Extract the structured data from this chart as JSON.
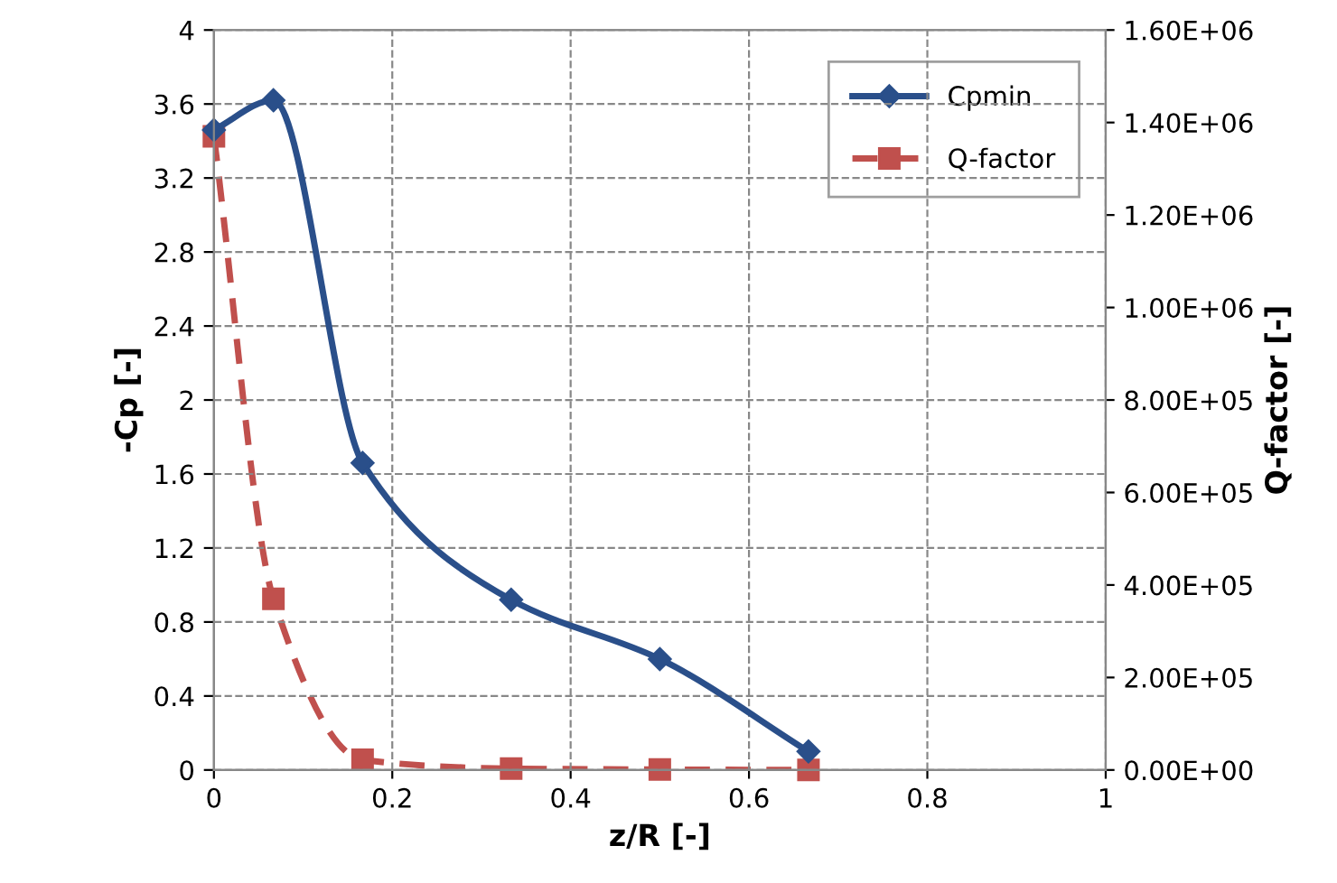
{
  "chart_data": {
    "type": "line",
    "xlabel": "z/R [-]",
    "ylabel": "-Cp [-]",
    "y2label": "Q-factor [-]",
    "xlim": [
      0,
      1
    ],
    "xticks": [
      0,
      0.2,
      0.4,
      0.6,
      0.8,
      1
    ],
    "ylim": [
      0,
      4
    ],
    "yticks": [
      0,
      0.4,
      0.8,
      1.2,
      1.6,
      2,
      2.4,
      2.8,
      3.2,
      3.6,
      4
    ],
    "y2lim": [
      0,
      1600000
    ],
    "y2ticks": [
      {
        "value": 0,
        "label": "0.00E+00"
      },
      {
        "value": 200000,
        "label": "2.00E+05"
      },
      {
        "value": 400000,
        "label": "4.00E+05"
      },
      {
        "value": 600000,
        "label": "6.00E+05"
      },
      {
        "value": 800000,
        "label": "8.00E+05"
      },
      {
        "value": 1000000,
        "label": "1.00E+06"
      },
      {
        "value": 1200000,
        "label": "1.20E+06"
      },
      {
        "value": 1400000,
        "label": "1.40E+06"
      },
      {
        "value": 1600000,
        "label": "1.60E+06"
      }
    ],
    "grid": true,
    "legend": "top right",
    "series": [
      {
        "name": "Cpmin",
        "color": "#2a4f8a",
        "marker": "diamond",
        "line_style": "solid",
        "x": [
          0,
          0.0667,
          0.1667,
          0.3333,
          0.5,
          0.6667
        ],
        "values": [
          3.46,
          3.62,
          1.66,
          0.92,
          0.6,
          0.1
        ]
      },
      {
        "name": "Q-factor",
        "color": "#c0504d",
        "marker": "square",
        "line_style": "dashed",
        "axis": "y2",
        "x": [
          0,
          0.0667,
          0.1667,
          0.3333,
          0.5,
          0.6667
        ],
        "values": [
          1370000,
          370000,
          22000,
          3000,
          1000,
          0
        ]
      }
    ]
  }
}
